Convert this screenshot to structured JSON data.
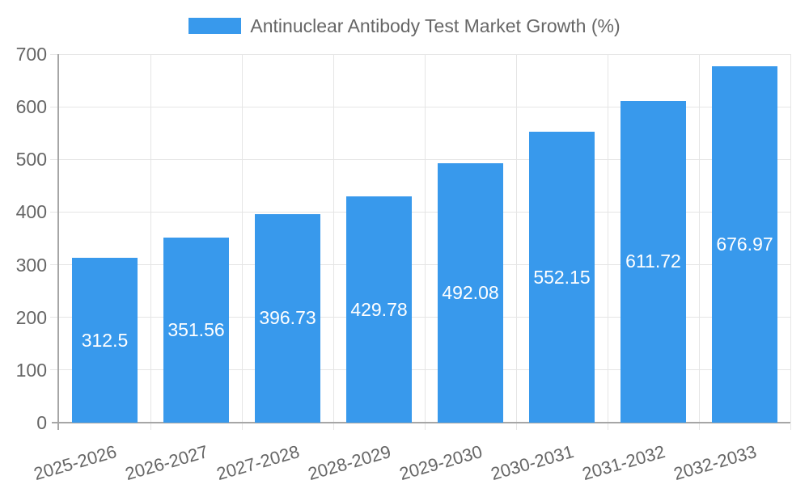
{
  "chart_data": {
    "type": "bar",
    "title": "",
    "legend_label": "Antinuclear Antibody Test Market Growth (%)",
    "legend_position": "top",
    "categories": [
      "2025-2026",
      "2026-2027",
      "2027-2028",
      "2028-2029",
      "2029-2030",
      "2030-2031",
      "2031-2032",
      "2032-2033"
    ],
    "values": [
      312.5,
      351.56,
      396.73,
      429.78,
      492.08,
      552.15,
      611.72,
      676.97
    ],
    "value_labels": [
      "312.5",
      "351.56",
      "396.73",
      "429.78",
      "492.08",
      "552.15",
      "611.72",
      "676.97"
    ],
    "xlabel": "",
    "ylabel": "",
    "y_ticks": [
      0,
      100,
      200,
      300,
      400,
      500,
      600,
      700
    ],
    "ylim": [
      0,
      700
    ],
    "grid": true,
    "colors": {
      "bar": "#3899ec",
      "value_label": "#ffffff",
      "tick_text": "#666666",
      "legend_text": "#666666",
      "gridline": "#e5e5e5",
      "axis_line": "#a6a6a6",
      "background": "#ffffff"
    }
  }
}
